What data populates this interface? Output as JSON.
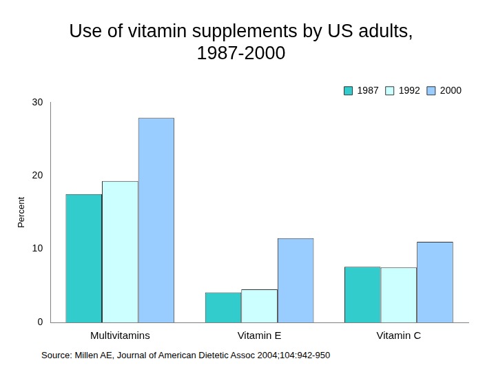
{
  "chart_data": {
    "type": "bar",
    "title": [
      "Use of vitamin supplements by US adults,",
      "1987-2000"
    ],
    "y_label": "Percent",
    "categories": [
      "Multivitamins",
      "Vitamin E",
      "Vitamin C"
    ],
    "series": [
      {
        "name": "1987",
        "color": "#33cccc",
        "values": [
          17.5,
          4.1,
          7.6
        ]
      },
      {
        "name": "1992",
        "color": "#ccffff",
        "values": [
          19.3,
          4.5,
          7.5
        ]
      },
      {
        "name": "2000",
        "color": "#99ccff",
        "values": [
          27.9,
          11.5,
          11.0
        ]
      }
    ],
    "ylim": [
      0,
      30
    ],
    "yticks": [
      0,
      10,
      20,
      30
    ],
    "grid": false,
    "legend": "upper right",
    "source": "Source: Millen AE, Journal of American Dietetic Assoc 2004;104:942-950"
  }
}
